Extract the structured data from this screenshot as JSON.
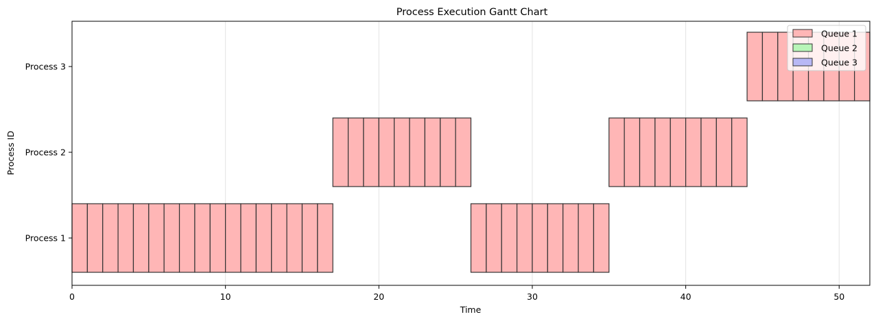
{
  "chart_data": {
    "type": "gantt",
    "title": "Process Execution Gantt Chart",
    "xlabel": "Time",
    "ylabel": "Process ID",
    "xlim": [
      0,
      52
    ],
    "x_ticks": [
      0,
      10,
      20,
      30,
      40,
      50
    ],
    "y_categories": [
      "Process 1",
      "Process 2",
      "Process 3"
    ],
    "grid": "x-axis vertical lines",
    "legend": {
      "placement": "top-right",
      "entries": [
        {
          "label": "Queue 1",
          "color": "#ffb6b6"
        },
        {
          "label": "Queue 2",
          "color": "#b8f5b8"
        },
        {
          "label": "Queue 3",
          "color": "#b8b8f5"
        }
      ]
    },
    "colors": {
      "queue1": "#ffb6b6",
      "queue2": "#b8f5b8",
      "queue3": "#b8b8f5",
      "edge": "#333333",
      "grid": "#e3e3e3"
    },
    "segments": [
      {
        "process": "Process 1",
        "queue": "Queue 1",
        "start": 0,
        "end": 17
      },
      {
        "process": "Process 2",
        "queue": "Queue 1",
        "start": 17,
        "end": 26
      },
      {
        "process": "Process 1",
        "queue": "Queue 1",
        "start": 26,
        "end": 35
      },
      {
        "process": "Process 2",
        "queue": "Queue 1",
        "start": 35,
        "end": 44
      },
      {
        "process": "Process 3",
        "queue": "Queue 1",
        "start": 44,
        "end": 52
      }
    ]
  }
}
